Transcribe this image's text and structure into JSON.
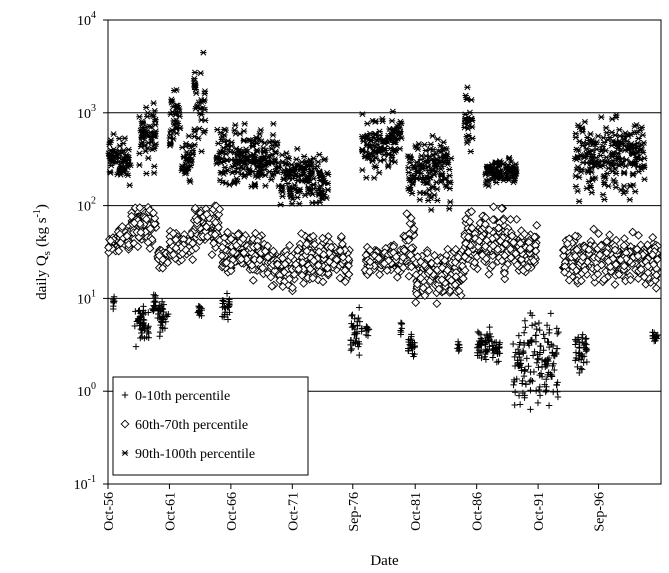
{
  "chart_data": {
    "type": "scatter",
    "title": "",
    "xlabel": "Date",
    "ylabel": {
      "prefix": "daily Q",
      "sub": "s",
      "units": "(kg s",
      "units_sup": "-1",
      "units_end": ")"
    },
    "yscale": "log",
    "ylim": [
      0.1,
      10000
    ],
    "y_ticks": [
      {
        "base": "10",
        "exp": "-1"
      },
      {
        "base": "10",
        "exp": "0"
      },
      {
        "base": "10",
        "exp": "1"
      },
      {
        "base": "10",
        "exp": "2"
      },
      {
        "base": "10",
        "exp": "3"
      },
      {
        "base": "10",
        "exp": "4"
      }
    ],
    "gridlines": [
      1,
      10,
      100,
      1000
    ],
    "xlim": [
      "1956-10-01",
      "2001-10-01"
    ],
    "x_ticks": [
      {
        "label": "Oct-56",
        "date": "1956-10-01"
      },
      {
        "label": "Oct-61",
        "date": "1961-10-01"
      },
      {
        "label": "Oct-66",
        "date": "1966-10-01"
      },
      {
        "label": "Oct-71",
        "date": "1971-10-01"
      },
      {
        "label": "Sep-76",
        "date": "1976-09-01"
      },
      {
        "label": "Oct-81",
        "date": "1981-10-01"
      },
      {
        "label": "Oct-86",
        "date": "1986-10-01"
      },
      {
        "label": "Oct-91",
        "date": "1991-10-01"
      },
      {
        "label": "Sep-96",
        "date": "1996-09-01"
      }
    ],
    "legend_position": "bottom-left",
    "series": [
      {
        "name": "0-10th percentile",
        "marker": "plus",
        "clusters": [
          {
            "start": "1957-03-01",
            "end": "1957-04-15",
            "min": 7,
            "max": 12
          },
          {
            "start": "1958-11-15",
            "end": "1960-02-01",
            "min": 2.5,
            "max": 11
          },
          {
            "start": "1960-05-01",
            "end": "1960-09-01",
            "min": 6,
            "max": 12
          },
          {
            "start": "1960-10-15",
            "end": "1961-09-01",
            "min": 3.5,
            "max": 12
          },
          {
            "start": "1964-01-15",
            "end": "1964-06-01",
            "min": 6,
            "max": 9
          },
          {
            "start": "1966-01-15",
            "end": "1966-09-01",
            "min": 5,
            "max": 14
          },
          {
            "start": "1976-07-01",
            "end": "1977-06-01",
            "min": 1.8,
            "max": 9
          },
          {
            "start": "1977-10-01",
            "end": "1978-01-01",
            "min": 3.5,
            "max": 6
          },
          {
            "start": "1980-07-01",
            "end": "1980-09-01",
            "min": 3.5,
            "max": 6
          },
          {
            "start": "1981-03-01",
            "end": "1981-10-01",
            "min": 2,
            "max": 4.5
          },
          {
            "start": "1985-03-01",
            "end": "1985-06-01",
            "min": 2.5,
            "max": 3.5
          },
          {
            "start": "1986-10-01",
            "end": "1988-01-01",
            "min": 1.8,
            "max": 6
          },
          {
            "start": "1988-01-01",
            "end": "1988-09-01",
            "min": 2,
            "max": 4
          },
          {
            "start": "1989-09-01",
            "end": "1991-01-01",
            "min": 0.5,
            "max": 7
          },
          {
            "start": "1991-01-01",
            "end": "1993-06-01",
            "min": 0.4,
            "max": 12
          },
          {
            "start": "1994-10-01",
            "end": "1995-10-01",
            "min": 1.2,
            "max": 5
          },
          {
            "start": "2001-01-01",
            "end": "2001-07-01",
            "min": 3.2,
            "max": 4.5
          }
        ]
      },
      {
        "name": "60th-70th percentile",
        "marker": "diamond",
        "clusters": [
          {
            "start": "1956-10-15",
            "end": "1957-06-01",
            "min": 28,
            "max": 55
          },
          {
            "start": "1957-07-01",
            "end": "1958-08-01",
            "min": 30,
            "max": 70
          },
          {
            "start": "1958-09-01",
            "end": "1960-09-01",
            "min": 30,
            "max": 130
          },
          {
            "start": "1960-10-01",
            "end": "1961-09-01",
            "min": 20,
            "max": 40
          },
          {
            "start": "1961-10-01",
            "end": "1963-09-01",
            "min": 22,
            "max": 60
          },
          {
            "start": "1963-10-01",
            "end": "1965-12-01",
            "min": 28,
            "max": 130
          },
          {
            "start": "1966-01-01",
            "end": "1969-09-01",
            "min": 15,
            "max": 60
          },
          {
            "start": "1969-10-01",
            "end": "1971-12-01",
            "min": 10,
            "max": 45
          },
          {
            "start": "1972-01-01",
            "end": "1976-06-01",
            "min": 12,
            "max": 60
          },
          {
            "start": "1977-09-01",
            "end": "1980-09-01",
            "min": 15,
            "max": 45
          },
          {
            "start": "1980-10-01",
            "end": "1981-09-01",
            "min": 10,
            "max": 100
          },
          {
            "start": "1981-10-01",
            "end": "1985-09-01",
            "min": 8,
            "max": 40
          },
          {
            "start": "1985-10-01",
            "end": "1989-06-01",
            "min": 15,
            "max": 110
          },
          {
            "start": "1989-07-01",
            "end": "1991-09-01",
            "min": 15,
            "max": 80
          },
          {
            "start": "1993-10-01",
            "end": "1996-06-01",
            "min": 12,
            "max": 60
          },
          {
            "start": "1996-07-01",
            "end": "2001-07-01",
            "min": 12,
            "max": 60
          }
        ]
      },
      {
        "name": "90th-100th percentile",
        "marker": "asterisk",
        "clusters": [
          {
            "start": "1956-10-15",
            "end": "1957-06-01",
            "min": 150,
            "max": 700
          },
          {
            "start": "1957-07-01",
            "end": "1958-08-01",
            "min": 120,
            "max": 800
          },
          {
            "start": "1959-04-01",
            "end": "1960-09-01",
            "min": 200,
            "max": 1500
          },
          {
            "start": "1961-10-01",
            "end": "1962-09-01",
            "min": 250,
            "max": 2500
          },
          {
            "start": "1962-10-01",
            "end": "1963-09-01",
            "min": 120,
            "max": 800
          },
          {
            "start": "1963-10-01",
            "end": "1964-09-01",
            "min": 300,
            "max": 5500
          },
          {
            "start": "1965-08-01",
            "end": "1970-09-01",
            "min": 120,
            "max": 900
          },
          {
            "start": "1970-10-01",
            "end": "1974-09-01",
            "min": 80,
            "max": 500
          },
          {
            "start": "1977-06-01",
            "end": "1978-09-01",
            "min": 150,
            "max": 1100
          },
          {
            "start": "1978-10-01",
            "end": "1980-09-01",
            "min": 200,
            "max": 1300
          },
          {
            "start": "1981-03-01",
            "end": "1984-09-01",
            "min": 80,
            "max": 700
          },
          {
            "start": "1985-10-01",
            "end": "1986-06-01",
            "min": 250,
            "max": 2300
          },
          {
            "start": "1987-06-01",
            "end": "1990-01-01",
            "min": 150,
            "max": 350
          },
          {
            "start": "1994-10-01",
            "end": "1996-09-01",
            "min": 70,
            "max": 1300
          },
          {
            "start": "1996-10-01",
            "end": "2000-06-01",
            "min": 100,
            "max": 1200
          }
        ]
      }
    ]
  }
}
